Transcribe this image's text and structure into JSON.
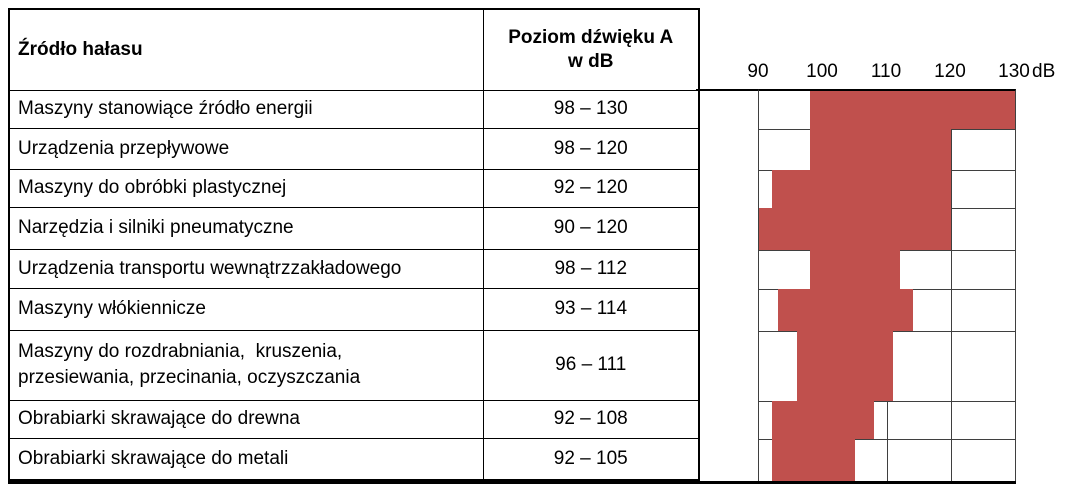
{
  "colors": {
    "bar": "#C0504D",
    "grid": "#3F3F3F",
    "table_border": "#000000",
    "background": "#FFFFFF",
    "text": "#000000"
  },
  "table": {
    "col1_header": "Źródło hałasu",
    "col2_header": "Poziom dźwięku A\nw dB",
    "rows": [
      {
        "source": "Maszyny stanowiące źródło energii",
        "range": "98 – 130"
      },
      {
        "source": "Urządzenia przepływowe",
        "range": "98 – 120"
      },
      {
        "source": "Maszyny do obróbki plastycznej",
        "range": "92 – 120"
      },
      {
        "source": "Narzędzia i silniki pneumatyczne",
        "range": "90 – 120"
      },
      {
        "source": "Urządzenia transportu wewnątrzzakładowego",
        "range": "98 – 112"
      },
      {
        "source": "Maszyny włókiennicze",
        "range": "93 – 114"
      },
      {
        "source": "Maszyny do rozdrabniania,  kruszenia,\nprzesiewania, przecinania, oczyszczania",
        "range": "96 – 111"
      },
      {
        "source": "Obrabiarki skrawające do drewna",
        "range": "92 – 108"
      },
      {
        "source": "Obrabiarki skrawające do metali",
        "range": "92 – 105"
      }
    ]
  },
  "chart_data": {
    "type": "bar",
    "orientation": "horizontal-range",
    "title": "",
    "xlabel": "Poziom dźwięku A w dB",
    "unit": "dB",
    "x_range": [
      90,
      130
    ],
    "x_ticks": [
      90,
      100,
      110,
      120,
      130
    ],
    "grid": true,
    "legend": "none",
    "bar_color": "#C0504D",
    "categories": [
      "Maszyny stanowiące źródło energii",
      "Urządzenia przepływowe",
      "Maszyny do obróbki plastycznej",
      "Narzędzia i silniki pneumatyczne",
      "Urządzenia transportu wewnątrzzakładowego",
      "Maszyny włókiennicze",
      "Maszyny do rozdrabniania, kruszenia, przesiewania, przecinania, oczyszczania",
      "Obrabiarki skrawające do drewna",
      "Obrabiarki skrawające do metali"
    ],
    "series": [
      {
        "name": "Poziom dźwięku A w dB",
        "ranges": [
          [
            98,
            130
          ],
          [
            98,
            120
          ],
          [
            92,
            120
          ],
          [
            90,
            120
          ],
          [
            98,
            112
          ],
          [
            93,
            114
          ],
          [
            96,
            111
          ],
          [
            92,
            108
          ],
          [
            92,
            105
          ]
        ]
      }
    ]
  }
}
